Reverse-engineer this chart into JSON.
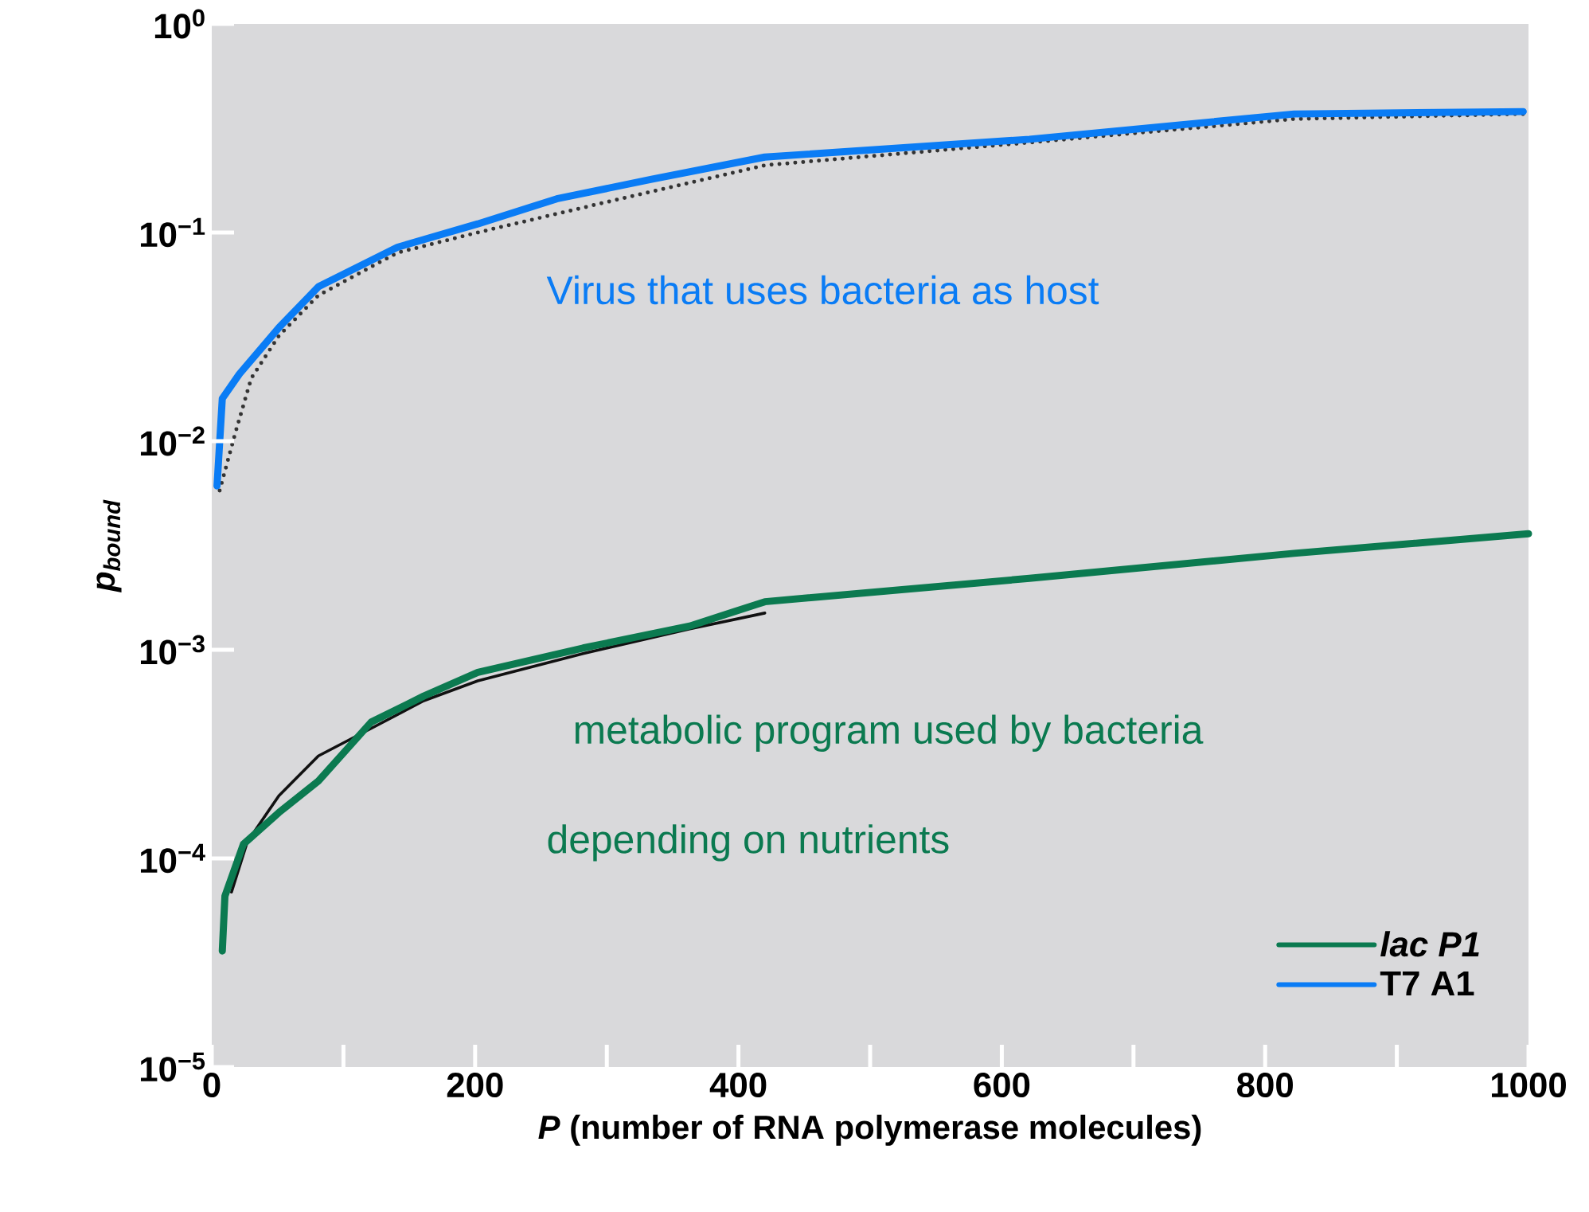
{
  "chart_data": {
    "type": "line",
    "xlabel": "*P* (number of RNA polymerase molecules)",
    "ylabel": "p$_{bound}$",
    "xlim": [
      0,
      1000
    ],
    "xticks": [
      0,
      {
        "value": 100,
        "label": null
      },
      200,
      {
        "value": 300,
        "label": null
      },
      400,
      {
        "value": 500,
        "label": null
      },
      600,
      {
        "value": 700,
        "label": null
      },
      800,
      {
        "value": 900,
        "label": null
      },
      1000
    ],
    "ylim": [
      1e-05,
      1
    ],
    "yticks": [
      {
        "value": 1e-05,
        "label": "10$^{−5}$"
      },
      {
        "value": 0.0001,
        "label": "10$^{−4}$"
      },
      {
        "value": 0.001,
        "label": "10$^{−3}$"
      },
      {
        "value": 0.01,
        "label": "10$^{−2}$"
      },
      {
        "value": 0.1,
        "label": "10$^{−1}$"
      },
      {
        "value": 1,
        "label": "10$^{0}$"
      }
    ],
    "log": "y",
    "legend": "bottom right",
    "series": [
      {
        "color": "#111111",
        "line_style": "solid",
        "x": [
          15,
          27,
          51,
          81,
          121,
          161,
          202,
          282,
          363,
          420
        ],
        "values": [
          6.9e-05,
          0.00012,
          0.0002,
          0.00031,
          0.00042,
          0.00057,
          0.00071,
          0.00096,
          0.00126,
          0.0015
        ]
      },
      {
        "color": "#333333",
        "line_style": "dotted",
        "x": [
          6,
          18,
          30,
          51,
          81,
          141,
          202,
          300,
          420,
          621,
          822,
          996
        ],
        "values": [
          0.0058,
          0.011,
          0.02,
          0.032,
          0.05,
          0.08,
          0.1,
          0.14,
          0.21,
          0.27,
          0.35,
          0.37
        ]
      },
      {
        "name": "*lac P1*",
        "color": "#0b7a50",
        "line_style": "solid",
        "x": [
          8,
          10,
          24,
          51,
          81,
          121,
          161,
          202,
          282,
          363,
          420,
          621,
          822,
          1000
        ],
        "values": [
          3.6e-05,
          6.6e-05,
          0.000117,
          0.000166,
          0.000235,
          0.00045,
          0.0006,
          0.00078,
          0.00102,
          0.0013,
          0.0017,
          0.0022,
          0.0029,
          0.0036
        ]
      },
      {
        "name": "T7 A1",
        "color": "#0a7cf5",
        "line_style": "solid",
        "x": [
          4,
          8,
          21,
          51,
          81,
          141,
          202,
          262,
          334,
          420,
          621,
          822,
          996
        ],
        "values": [
          0.0061,
          0.016,
          0.021,
          0.035,
          0.055,
          0.085,
          0.11,
          0.145,
          0.18,
          0.23,
          0.28,
          0.37,
          0.38
        ]
      }
    ],
    "annotations": [
      "Virus that uses bacteria as host",
      "metabolic program used by bacteria",
      "depending on nutrients"
    ]
  }
}
